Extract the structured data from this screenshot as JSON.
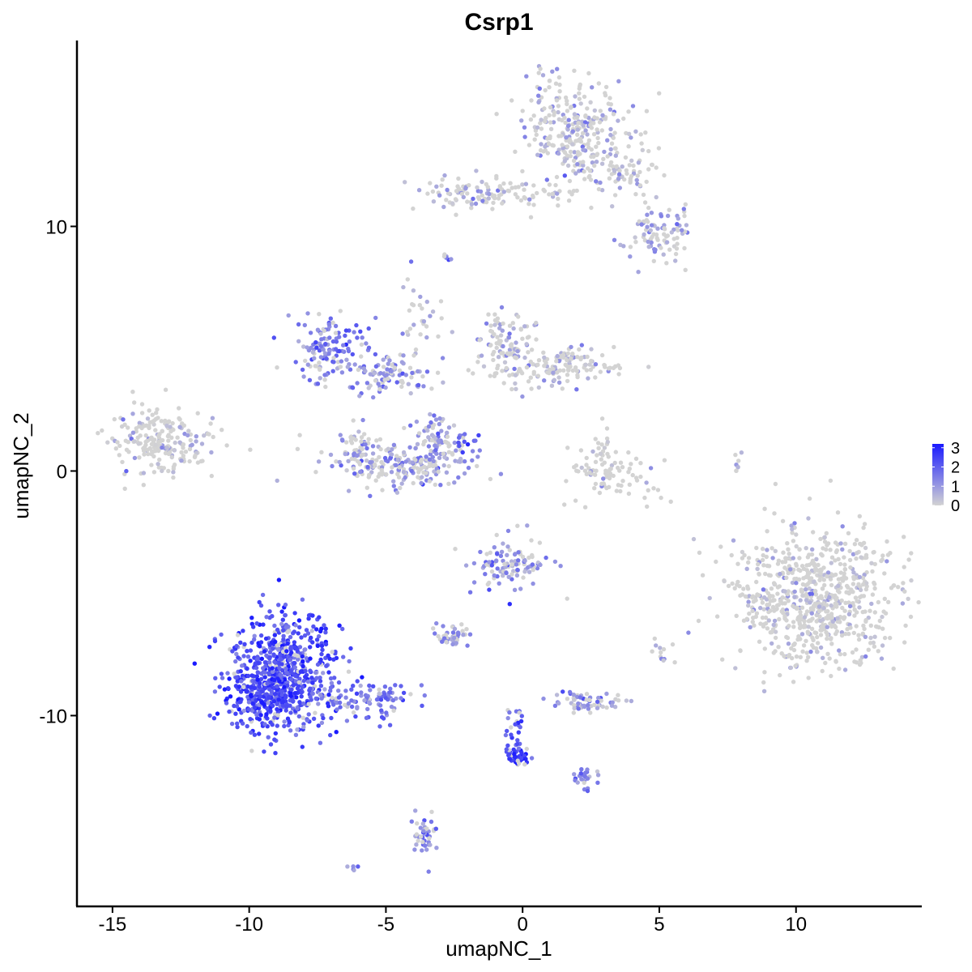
{
  "chart_data": {
    "type": "scatter",
    "title": "Csrp1",
    "xlabel": "umapNC_1",
    "ylabel": "umapNC_2",
    "xlim": [
      -16.3,
      14.6
    ],
    "ylim": [
      -17.8,
      17.6
    ],
    "x_ticks": [
      -15,
      -10,
      -5,
      0,
      5,
      10
    ],
    "x_tick_labels": [
      "-15",
      "-10",
      "-5",
      "0",
      "5",
      "10"
    ],
    "y_ticks": [
      10,
      0,
      -10
    ],
    "y_tick_labels": [
      "10",
      "0",
      "-10"
    ],
    "grid": false,
    "color_scale": {
      "low_color": "#d3d3d3",
      "high_color": "#1a1aff",
      "min": 0,
      "max": 3.2,
      "ticks": [
        3,
        2,
        1,
        0
      ],
      "tick_labels": [
        "3",
        "2",
        "1",
        "0"
      ],
      "legend_position": "right"
    },
    "clusters": [
      {
        "cx": 1.8,
        "cy": 14.2,
        "sx": 0.9,
        "sy": 1.0,
        "n": 260,
        "expr": 0.6
      },
      {
        "cx": 3.5,
        "cy": 12.3,
        "sx": 1.0,
        "sy": 0.55,
        "n": 100,
        "expr": 0.6
      },
      {
        "cx": 5.0,
        "cy": 9.6,
        "sx": 0.6,
        "sy": 0.6,
        "n": 90,
        "expr": 0.8
      },
      {
        "cx": -1.8,
        "cy": 11.3,
        "sx": 1.1,
        "sy": 0.35,
        "n": 90,
        "expr": 0.6
      },
      {
        "cx": 0.8,
        "cy": 11.4,
        "sx": 1.0,
        "sy": 0.25,
        "n": 30,
        "expr": 0.5
      },
      {
        "cx": -7.0,
        "cy": 5.0,
        "sx": 0.7,
        "sy": 0.6,
        "n": 130,
        "expr": 1.4
      },
      {
        "cx": -5.0,
        "cy": 4.0,
        "sx": 0.9,
        "sy": 0.4,
        "n": 100,
        "expr": 1.2
      },
      {
        "cx": -3.8,
        "cy": 6.2,
        "sx": 0.35,
        "sy": 0.8,
        "n": 30,
        "expr": 1.0
      },
      {
        "cx": -4.3,
        "cy": 0.2,
        "sx": 1.3,
        "sy": 0.5,
        "n": 220,
        "expr": 1.0
      },
      {
        "cx": -3.2,
        "cy": 1.5,
        "sx": 0.4,
        "sy": 0.5,
        "n": 60,
        "expr": 1.1
      },
      {
        "cx": -6.0,
        "cy": 0.9,
        "sx": 0.3,
        "sy": 0.5,
        "n": 50,
        "expr": 0.9
      },
      {
        "cx": -13.2,
        "cy": 1.2,
        "sx": 0.9,
        "sy": 0.65,
        "n": 220,
        "expr": 0.4
      },
      {
        "cx": -0.6,
        "cy": 5.0,
        "sx": 0.6,
        "sy": 0.8,
        "n": 110,
        "expr": 0.5
      },
      {
        "cx": 1.5,
        "cy": 4.3,
        "sx": 1.0,
        "sy": 0.4,
        "n": 130,
        "expr": 0.6
      },
      {
        "cx": 3.5,
        "cy": -0.2,
        "sx": 0.8,
        "sy": 0.5,
        "n": 80,
        "expr": 0.3
      },
      {
        "cx": 2.8,
        "cy": 1.0,
        "sx": 0.3,
        "sy": 0.5,
        "n": 20,
        "expr": 0.4
      },
      {
        "cx": 10.8,
        "cy": -5.2,
        "sx": 1.5,
        "sy": 1.4,
        "n": 750,
        "expr": 0.4
      },
      {
        "cx": -0.5,
        "cy": -3.8,
        "sx": 0.7,
        "sy": 0.6,
        "n": 110,
        "expr": 1.2
      },
      {
        "cx": -2.6,
        "cy": -6.8,
        "sx": 0.35,
        "sy": 0.22,
        "n": 45,
        "expr": 1.1
      },
      {
        "cx": 2.4,
        "cy": -9.5,
        "sx": 0.55,
        "sy": 0.22,
        "n": 65,
        "expr": 1.1
      },
      {
        "cx": -8.7,
        "cy": -8.3,
        "sx": 1.0,
        "sy": 1.2,
        "n": 650,
        "expr": 2.3
      },
      {
        "cx": -9.6,
        "cy": -9.2,
        "sx": 0.6,
        "sy": 0.6,
        "n": 160,
        "expr": 2.4
      },
      {
        "cx": -5.5,
        "cy": -9.4,
        "sx": 1.0,
        "sy": 0.35,
        "n": 100,
        "expr": 1.6
      },
      {
        "cx": -0.2,
        "cy": -11.7,
        "sx": 0.25,
        "sy": 0.22,
        "n": 45,
        "expr": 2.7
      },
      {
        "cx": -0.3,
        "cy": -10.4,
        "sx": 0.2,
        "sy": 0.6,
        "n": 25,
        "expr": 2.0
      },
      {
        "cx": 2.3,
        "cy": -12.6,
        "sx": 0.22,
        "sy": 0.2,
        "n": 25,
        "expr": 1.6
      },
      {
        "cx": -3.6,
        "cy": -14.8,
        "sx": 0.22,
        "sy": 0.5,
        "n": 45,
        "expr": 1.3
      },
      {
        "cx": -2.0,
        "cy": 1.2,
        "sx": 0.35,
        "sy": 0.2,
        "n": 15,
        "expr": 2.0
      },
      {
        "cx": 5.1,
        "cy": -7.4,
        "sx": 0.2,
        "sy": 0.2,
        "n": 12,
        "expr": 0.9
      },
      {
        "cx": -2.8,
        "cy": 8.8,
        "sx": 0.12,
        "sy": 0.1,
        "n": 6,
        "expr": 1.5
      },
      {
        "cx": 7.9,
        "cy": 0.3,
        "sx": 0.1,
        "sy": 0.3,
        "n": 8,
        "expr": 0.5
      },
      {
        "cx": -6.1,
        "cy": -16.2,
        "sx": 0.12,
        "sy": 0.08,
        "n": 5,
        "expr": 1.3
      }
    ]
  }
}
